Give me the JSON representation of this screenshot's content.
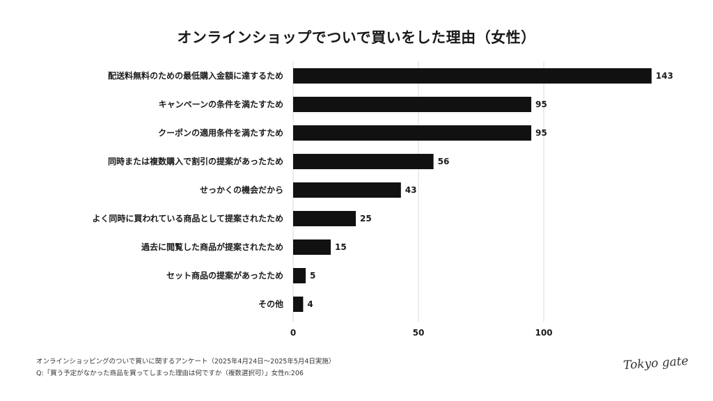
{
  "chart_data": {
    "type": "bar",
    "orientation": "horizontal",
    "title": "オンラインショップでついで買いをした理由（女性）",
    "categories": [
      "配送料無料のための最低購入金額に達するため",
      "キャンペーンの条件を満たすため",
      "クーポンの適用条件を満たすため",
      "同時または複数購入で割引の提案があったため",
      "せっかくの機会だから",
      "よく同時に買われている商品として提案されたため",
      "過去に閲覧した商品が提案されたため",
      "セット商品の提案があったため",
      "その他"
    ],
    "values": [
      143,
      95,
      95,
      56,
      43,
      25,
      15,
      5,
      4
    ],
    "xlim": [
      0,
      143
    ],
    "xticks": [
      0,
      50,
      100
    ],
    "grid": true,
    "bar_color": "#111111"
  },
  "footnotes": {
    "survey": "オンラインショッピングのついで買いに関するアンケート（2025年4月24日〜2025年5月4日実施）",
    "question": "Q:「買う予定がなかった商品を買ってしまった理由は何ですか（複数選択可）」女性n:206"
  },
  "logo_text": "Tokyo gate"
}
